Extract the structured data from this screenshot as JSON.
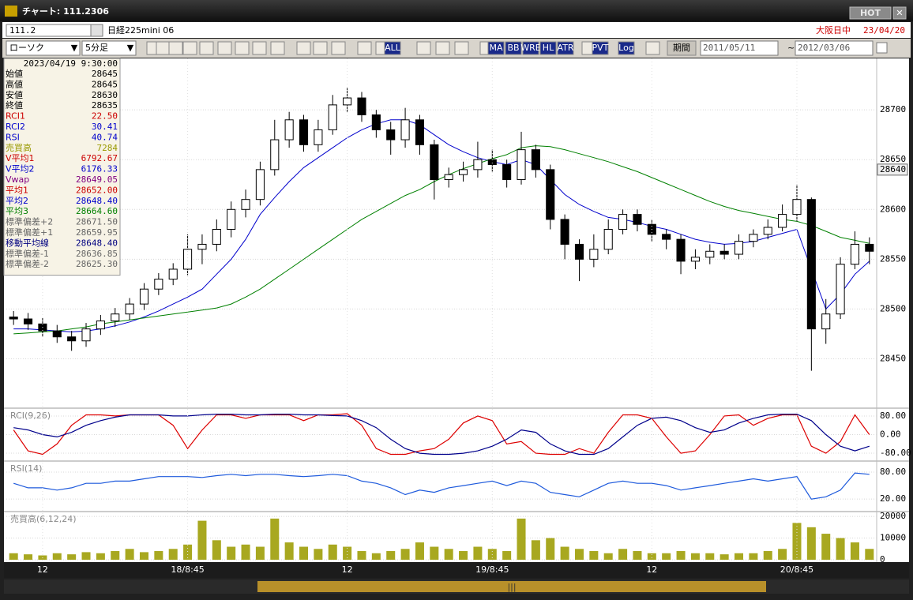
{
  "window": {
    "title": "チャート: 111.2306",
    "hot": "HOT"
  },
  "toolbar": {
    "code": "111.2",
    "instrument": "日経225mini 06",
    "session": "大阪日中",
    "date": "23/04/20",
    "chart_style": "ローソク",
    "interval": "5分足",
    "buttons": [
      "ALL",
      "MA",
      "BB",
      "WRE",
      "HL",
      "ATR",
      "PVT",
      "Log"
    ],
    "period": "期間",
    "from": "2011/05/11",
    "separator": "~",
    "to": "2012/03/06"
  },
  "info_panel": {
    "datetime": "2023/04/19 9:30:00",
    "rows": [
      {
        "label": "始値",
        "value": "28645",
        "color": "#000000"
      },
      {
        "label": "高値",
        "value": "28645",
        "color": "#000000"
      },
      {
        "label": "安値",
        "value": "28630",
        "color": "#000000"
      },
      {
        "label": "終値",
        "value": "28635",
        "color": "#000000"
      },
      {
        "label": "RCI1",
        "value": "22.50",
        "color": "#cc0000"
      },
      {
        "label": "RCI2",
        "value": "30.41",
        "color": "#0000cc"
      },
      {
        "label": "RSI",
        "value": "40.74",
        "color": "#0000cc"
      },
      {
        "label": "売買高",
        "value": "7284",
        "color": "#999900"
      },
      {
        "label": "V平均1",
        "value": "6792.67",
        "color": "#cc0000"
      },
      {
        "label": "V平均2",
        "value": "6176.33",
        "color": "#0000cc"
      },
      {
        "label": "Vwap",
        "value": "28649.05",
        "color": "#800080"
      },
      {
        "label": "平均1",
        "value": "28652.00",
        "color": "#cc0000"
      },
      {
        "label": "平均2",
        "value": "28648.40",
        "color": "#0000cc"
      },
      {
        "label": "平均3",
        "value": "28664.60",
        "color": "#008000"
      },
      {
        "label": "標準偏差+2",
        "value": "28671.50",
        "color": "#666666"
      },
      {
        "label": "標準偏差+1",
        "value": "28659.95",
        "color": "#666666"
      },
      {
        "label": "移動平均線",
        "value": "28648.40",
        "color": "#000080"
      },
      {
        "label": "標準偏差-1",
        "value": "28636.85",
        "color": "#666666"
      },
      {
        "label": "標準偏差-2",
        "value": "28625.30",
        "color": "#666666"
      }
    ]
  },
  "chart_data": [
    {
      "type": "candlestick",
      "categories": [
        null,
        null,
        "12",
        null,
        null,
        null,
        null,
        null,
        null,
        null,
        null,
        null,
        "18/8:45",
        null,
        null,
        null,
        null,
        null,
        null,
        null,
        null,
        null,
        null,
        "12",
        null,
        null,
        null,
        null,
        null,
        null,
        null,
        null,
        null,
        "19/8:45",
        null,
        null,
        null,
        null,
        null,
        null,
        null,
        null,
        null,
        null,
        "12",
        null,
        null,
        null,
        null,
        null,
        null,
        null,
        null,
        null,
        "20/8:45",
        null,
        null,
        null,
        null,
        null
      ],
      "open": [
        28492,
        28490,
        28485,
        28478,
        28472,
        28468,
        28480,
        28488,
        28495,
        28505,
        28520,
        28530,
        28540,
        28560,
        28565,
        28580,
        28600,
        28610,
        28640,
        28670,
        28690,
        28665,
        28680,
        28705,
        28712,
        28695,
        28680,
        28670,
        28690,
        28665,
        28630,
        28635,
        28640,
        28650,
        28645,
        28630,
        28660,
        28640,
        28590,
        28565,
        28550,
        28560,
        28580,
        28595,
        28585,
        28575,
        28570,
        28548,
        28552,
        28558,
        28555,
        28568,
        28575,
        28582,
        28595,
        28610,
        28480,
        28495,
        28545,
        28565
      ],
      "high": [
        28498,
        28496,
        28491,
        28484,
        28478,
        28486,
        28494,
        28501,
        28511,
        28526,
        28536,
        28546,
        28575,
        28575,
        28590,
        28608,
        28620,
        28648,
        28690,
        28698,
        28695,
        28690,
        28715,
        28722,
        28718,
        28700,
        28688,
        28702,
        28695,
        28670,
        28642,
        28648,
        28668,
        28660,
        28650,
        28678,
        28665,
        28645,
        28595,
        28570,
        28575,
        28590,
        28600,
        28600,
        28590,
        28580,
        28575,
        28560,
        28565,
        28565,
        28575,
        28580,
        28590,
        28605,
        28625,
        28612,
        28510,
        28552,
        28578,
        28572
      ],
      "low": [
        28484,
        28479,
        28472,
        28466,
        28458,
        28462,
        28474,
        28482,
        28489,
        28499,
        28514,
        28524,
        28534,
        28545,
        28558,
        28572,
        28592,
        28604,
        28634,
        28662,
        28658,
        28658,
        28675,
        28698,
        28688,
        28672,
        28655,
        28662,
        28655,
        28610,
        28622,
        28628,
        28632,
        28638,
        28622,
        28625,
        28632,
        28580,
        28550,
        28528,
        28542,
        28555,
        28575,
        28578,
        28568,
        28560,
        28535,
        28540,
        28545,
        28550,
        28550,
        28562,
        28570,
        28578,
        28588,
        28438,
        28465,
        28490,
        28540,
        28545
      ],
      "close": [
        28490,
        28485,
        28478,
        28472,
        28468,
        28480,
        28488,
        28495,
        28505,
        28520,
        28530,
        28540,
        28560,
        28565,
        28580,
        28600,
        28610,
        28640,
        28670,
        28690,
        28665,
        28680,
        28705,
        28712,
        28695,
        28680,
        28670,
        28690,
        28665,
        28630,
        28635,
        28640,
        28650,
        28645,
        28630,
        28660,
        28640,
        28590,
        28565,
        28550,
        28560,
        28580,
        28595,
        28585,
        28575,
        28570,
        28548,
        28552,
        28558,
        28555,
        28568,
        28575,
        28582,
        28595,
        28610,
        28480,
        28495,
        28545,
        28565,
        28558
      ],
      "up_color": "#ffffff",
      "down_color": "#000000",
      "series": [
        {
          "color": "#0000cc",
          "values": [
            28480,
            28480,
            28479,
            28478,
            28477,
            28478,
            28480,
            28483,
            28487,
            28492,
            28498,
            28505,
            28512,
            28520,
            28535,
            28550,
            28570,
            28595,
            28612,
            28628,
            28642,
            28652,
            28662,
            28672,
            28680,
            28686,
            28690,
            28690,
            28685,
            28675,
            28665,
            28658,
            28652,
            28648,
            28645,
            28650,
            28645,
            28630,
            28615,
            28605,
            28598,
            28592,
            28590,
            28587,
            28583,
            28580,
            28575,
            28570,
            28567,
            28565,
            28566,
            28568,
            28572,
            28576,
            28580,
            28540,
            28500,
            28515,
            28535,
            28548
          ]
        },
        {
          "color": "#008000",
          "values": [
            28475,
            28476,
            28477,
            28478,
            28480,
            28482,
            28485,
            28487,
            28489,
            28491,
            28493,
            28495,
            28497,
            28499,
            28501,
            28505,
            28512,
            28520,
            28530,
            28540,
            28550,
            28560,
            28570,
            28580,
            28590,
            28598,
            28606,
            28614,
            28620,
            28628,
            28635,
            28641,
            28646,
            28651,
            28655,
            28662,
            28664,
            28663,
            28660,
            28656,
            28652,
            28648,
            28643,
            28638,
            28632,
            28626,
            28620,
            28614,
            28608,
            28603,
            28599,
            28596,
            28593,
            28590,
            28588,
            28584,
            28578,
            28572,
            28569,
            28566
          ]
        }
      ],
      "ylim": [
        28402,
        28739
      ],
      "yticks": [
        28450,
        28500,
        28550,
        28600,
        28650,
        28700
      ],
      "grid": true,
      "last_price": 28640
    },
    {
      "type": "line",
      "title": "RCI(9,26)",
      "series": [
        {
          "color": "#dd0000",
          "values": [
            20,
            -70,
            -85,
            -40,
            40,
            85,
            85,
            80,
            85,
            85,
            85,
            40,
            -60,
            20,
            85,
            85,
            70,
            85,
            85,
            85,
            60,
            85,
            85,
            90,
            40,
            -60,
            -85,
            -85,
            -70,
            -60,
            -20,
            50,
            80,
            60,
            -40,
            -30,
            -80,
            -85,
            -85,
            -60,
            -80,
            10,
            85,
            85,
            70,
            -10,
            -80,
            -70,
            0,
            80,
            85,
            40,
            70,
            85,
            85,
            -50,
            -80,
            -30,
            85,
            0
          ]
        },
        {
          "color": "#00008b",
          "values": [
            30,
            20,
            0,
            -10,
            10,
            40,
            60,
            75,
            85,
            85,
            85,
            80,
            80,
            85,
            88,
            88,
            85,
            85,
            88,
            88,
            85,
            85,
            82,
            80,
            60,
            30,
            -20,
            -60,
            -80,
            -85,
            -85,
            -80,
            -70,
            -50,
            -20,
            20,
            10,
            -40,
            -70,
            -85,
            -85,
            -60,
            -10,
            40,
            70,
            75,
            60,
            30,
            10,
            20,
            50,
            70,
            85,
            88,
            88,
            60,
            0,
            -50,
            -70,
            -50
          ]
        }
      ],
      "ylim": [
        -107,
        107
      ],
      "yticks": [
        {
          "value": 80,
          "label": "80.00"
        },
        {
          "value": 0,
          "label": "0.00"
        },
        {
          "value": -80,
          "label": "-80.00"
        }
      ],
      "grid": true
    },
    {
      "type": "line",
      "title": "RSI(14)",
      "series": [
        {
          "color": "#1e5adc",
          "values": [
            55,
            45,
            45,
            40,
            45,
            55,
            55,
            60,
            60,
            65,
            70,
            70,
            70,
            68,
            72,
            75,
            72,
            75,
            75,
            72,
            70,
            72,
            75,
            72,
            60,
            55,
            45,
            30,
            40,
            35,
            45,
            50,
            55,
            60,
            50,
            60,
            55,
            35,
            30,
            25,
            40,
            55,
            60,
            55,
            55,
            50,
            40,
            45,
            50,
            55,
            60,
            65,
            60,
            65,
            70,
            20,
            25,
            40,
            78,
            75
          ]
        }
      ],
      "ylim": [
        -6,
        101
      ],
      "yticks": [
        {
          "value": 80,
          "label": "80.00"
        },
        {
          "value": 20,
          "label": "20.00"
        }
      ],
      "grid": true
    },
    {
      "type": "bar",
      "title": "売買高(6,12,24)",
      "color": "#a8a820",
      "values": [
        3000,
        2500,
        2000,
        3000,
        2500,
        3500,
        3000,
        4000,
        5000,
        3500,
        4000,
        5000,
        7000,
        18000,
        9000,
        6000,
        7000,
        6000,
        19000,
        8000,
        6000,
        5000,
        7000,
        6000,
        4000,
        3000,
        4000,
        5000,
        8000,
        6000,
        5000,
        4000,
        6000,
        5000,
        4000,
        19000,
        9000,
        10000,
        6000,
        5000,
        4000,
        3000,
        5000,
        4000,
        3000,
        3000,
        4000,
        3000,
        3000,
        2500,
        3000,
        3000,
        4000,
        5000,
        17000,
        15000,
        12000,
        10000,
        8000,
        5000
      ],
      "ylim": [
        0,
        21500
      ],
      "yticks": [
        0,
        10000,
        20000
      ],
      "grid": true
    }
  ]
}
